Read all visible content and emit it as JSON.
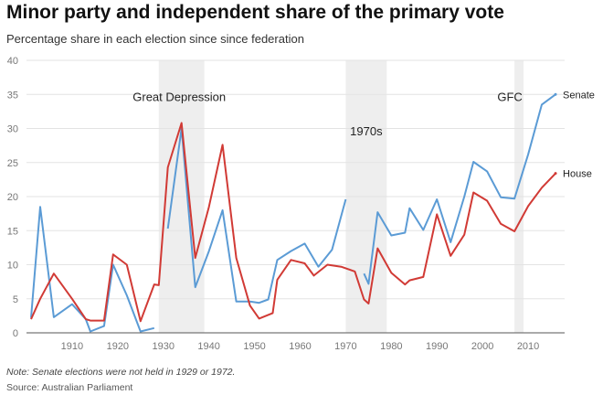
{
  "header": {
    "title": "Minor party and independent share of the primary vote",
    "subtitle": "Percentage share in each election since since federation"
  },
  "footer": {
    "note": "Note: Senate elections were not held in 1929 or 1972.",
    "source": "Source: Australian Parliament"
  },
  "colors": {
    "senate": "#5b9bd5",
    "house": "#d13a35",
    "band": "#eeeeee",
    "grid": "#e3e3e3"
  },
  "chart_data": {
    "type": "line",
    "xlim": [
      1900,
      2018
    ],
    "ylim": [
      0,
      40
    ],
    "yticks": [
      0,
      5,
      10,
      15,
      20,
      25,
      30,
      35,
      40
    ],
    "xticks": [
      1910,
      1920,
      1930,
      1940,
      1950,
      1960,
      1970,
      1980,
      1990,
      2000,
      2010
    ],
    "shaded_periods": [
      {
        "label": "Great Depression",
        "start": 1929,
        "end": 1939,
        "label_x": 1933.5,
        "label_y": 34
      },
      {
        "label": "1970s",
        "start": 1970,
        "end": 1979,
        "label_x": 1974.5,
        "label_y": 29
      },
      {
        "label": "GFC",
        "start": 2007,
        "end": 2009,
        "label_x": 2006,
        "label_y": 34
      }
    ],
    "series": [
      {
        "name": "Senate",
        "segments": [
          [
            [
              1901,
              2.2
            ],
            [
              1903,
              18.5
            ],
            [
              1906,
              2.3
            ],
            [
              1910,
              4.2
            ],
            [
              1913,
              2.0
            ],
            [
              1914,
              0.2
            ],
            [
              1917,
              1.0
            ],
            [
              1919,
              10.0
            ],
            [
              1922,
              5.5
            ],
            [
              1925,
              0.2
            ],
            [
              1928,
              0.7
            ]
          ],
          [
            [
              1931,
              15.3
            ],
            [
              1934,
              30.0
            ],
            [
              1937,
              6.7
            ],
            [
              1940,
              12.0
            ],
            [
              1943,
              18.0
            ],
            [
              1946,
              4.6
            ],
            [
              1949,
              4.6
            ],
            [
              1951,
              4.4
            ],
            [
              1953,
              4.9
            ],
            [
              1955,
              10.7
            ],
            [
              1958,
              12.0
            ],
            [
              1961,
              13.1
            ],
            [
              1964,
              9.7
            ],
            [
              1967,
              12.2
            ],
            [
              1970,
              19.6
            ]
          ],
          [
            [
              1974,
              8.7
            ],
            [
              1975,
              7.2
            ],
            [
              1977,
              17.7
            ],
            [
              1980,
              14.3
            ],
            [
              1983,
              14.7
            ],
            [
              1984,
              18.3
            ],
            [
              1987,
              15.1
            ],
            [
              1990,
              19.6
            ],
            [
              1993,
              13.3
            ],
            [
              1996,
              20.0
            ],
            [
              1998,
              25.1
            ],
            [
              2001,
              23.7
            ],
            [
              2004,
              19.9
            ],
            [
              2007,
              19.7
            ],
            [
              2010,
              26.2
            ],
            [
              2013,
              33.5
            ],
            [
              2016,
              35.0
            ]
          ]
        ]
      },
      {
        "name": "House",
        "segments": [
          [
            [
              1901,
              2.0
            ],
            [
              1903,
              5.0
            ],
            [
              1906,
              8.7
            ],
            [
              1910,
              5.0
            ],
            [
              1913,
              2.0
            ],
            [
              1914,
              1.8
            ],
            [
              1917,
              1.8
            ],
            [
              1919,
              11.5
            ],
            [
              1922,
              10.0
            ],
            [
              1925,
              1.7
            ],
            [
              1928,
              7.1
            ],
            [
              1929,
              7.0
            ],
            [
              1931,
              24.3
            ],
            [
              1934,
              30.8
            ],
            [
              1937,
              11.0
            ],
            [
              1940,
              18.5
            ],
            [
              1943,
              27.6
            ],
            [
              1946,
              11.0
            ],
            [
              1949,
              4.0
            ],
            [
              1951,
              2.1
            ],
            [
              1954,
              2.9
            ],
            [
              1955,
              7.8
            ],
            [
              1958,
              10.7
            ],
            [
              1961,
              10.2
            ],
            [
              1963,
              8.4
            ],
            [
              1966,
              10.0
            ],
            [
              1969,
              9.7
            ],
            [
              1972,
              9.0
            ],
            [
              1974,
              4.9
            ],
            [
              1975,
              4.3
            ],
            [
              1977,
              12.4
            ],
            [
              1980,
              8.8
            ],
            [
              1983,
              7.1
            ],
            [
              1984,
              7.7
            ],
            [
              1987,
              8.2
            ],
            [
              1990,
              17.4
            ],
            [
              1993,
              11.3
            ],
            [
              1996,
              14.4
            ],
            [
              1998,
              20.6
            ],
            [
              2001,
              19.4
            ],
            [
              2004,
              16.0
            ],
            [
              2007,
              14.9
            ],
            [
              2010,
              18.6
            ],
            [
              2013,
              21.3
            ],
            [
              2016,
              23.4
            ]
          ]
        ]
      }
    ]
  }
}
